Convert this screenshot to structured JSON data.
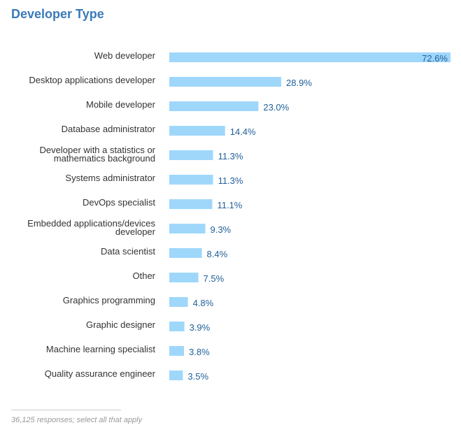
{
  "chart_data": {
    "type": "bar",
    "orientation": "horizontal",
    "title": "Developer Type",
    "categories": [
      "Web developer",
      "Desktop applications developer",
      "Mobile developer",
      "Database administrator",
      "Developer with a statistics or mathematics background",
      "Systems administrator",
      "DevOps specialist",
      "Embedded applications/devices developer",
      "Data scientist",
      "Other",
      "Graphics programming",
      "Graphic designer",
      "Machine learning specialist",
      "Quality assurance engineer"
    ],
    "category_lines": [
      [
        "Web developer"
      ],
      [
        "Desktop applications developer"
      ],
      [
        "Mobile developer"
      ],
      [
        "Database administrator"
      ],
      [
        "Developer with a statistics or",
        "mathematics background"
      ],
      [
        "Systems administrator"
      ],
      [
        "DevOps specialist"
      ],
      [
        "Embedded applications/devices",
        "developer"
      ],
      [
        "Data scientist"
      ],
      [
        "Other"
      ],
      [
        "Graphics programming"
      ],
      [
        "Graphic designer"
      ],
      [
        "Machine learning specialist"
      ],
      [
        "Quality assurance engineer"
      ]
    ],
    "values": [
      72.6,
      28.9,
      23.0,
      14.4,
      11.3,
      11.3,
      11.1,
      9.3,
      8.4,
      7.5,
      4.8,
      3.9,
      3.8,
      3.5
    ],
    "value_labels": [
      "72.6%",
      "28.9%",
      "23.0%",
      "14.4%",
      "11.3%",
      "11.3%",
      "11.1%",
      "9.3%",
      "8.4%",
      "7.5%",
      "4.8%",
      "3.9%",
      "3.8%",
      "3.5%"
    ],
    "unit": "%",
    "xlim": [
      0,
      72.6
    ],
    "grid": false,
    "xlabel": "",
    "ylabel": ""
  },
  "footnote": "36,125 responses; select all that apply",
  "colors": {
    "bar": "#9fd7fb",
    "title": "#3a7ab8",
    "value_label": "#1f5f9a",
    "category_label": "#333333",
    "footnote": "#999999"
  }
}
